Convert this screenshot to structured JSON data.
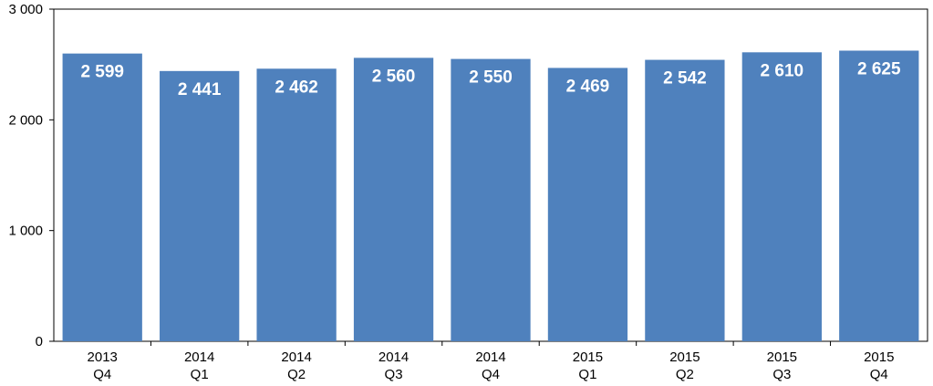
{
  "chart_data": {
    "type": "bar",
    "categories": [
      [
        "2013",
        "Q4"
      ],
      [
        "2014",
        "Q1"
      ],
      [
        "2014",
        "Q2"
      ],
      [
        "2014",
        "Q3"
      ],
      [
        "2014",
        "Q4"
      ],
      [
        "2015",
        "Q1"
      ],
      [
        "2015",
        "Q2"
      ],
      [
        "2015",
        "Q3"
      ],
      [
        "2015",
        "Q4"
      ]
    ],
    "values": [
      2599,
      2441,
      2462,
      2560,
      2550,
      2469,
      2542,
      2610,
      2625
    ],
    "data_labels": [
      "2 599",
      "2 441",
      "2 462",
      "2 560",
      "2 550",
      "2 469",
      "2 542",
      "2 610",
      "2 625"
    ],
    "title": "",
    "xlabel": "",
    "ylabel": "",
    "ylim": [
      0,
      3000
    ],
    "yticks": [
      0,
      1000,
      2000,
      3000
    ],
    "ytick_labels": [
      "0",
      "1 000",
      "2 000",
      "3 000"
    ],
    "grid": false,
    "legend": "none",
    "bar_color": "#4f81bd",
    "label_color": "#ffffff"
  }
}
